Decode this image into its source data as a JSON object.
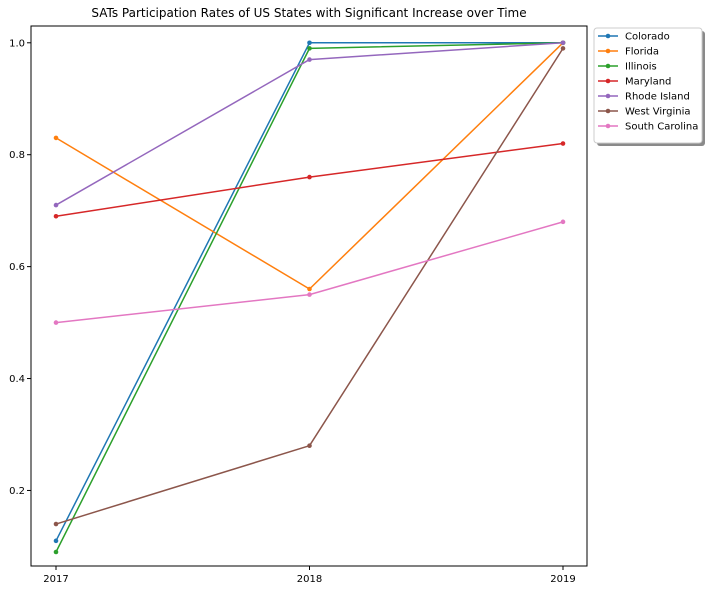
{
  "colors": {
    "background": "#ffffff",
    "axis": "#000000",
    "series": [
      "#1f77b4",
      "#ff7f0e",
      "#2ca02c",
      "#d62728",
      "#9467bd",
      "#8c564b",
      "#e377c2"
    ]
  },
  "chart_data": {
    "type": "line",
    "title": "SATs Participation Rates of US States with Significant Increase over Time",
    "xlabel": "",
    "ylabel": "",
    "categories": [
      "2017",
      "2018",
      "2019"
    ],
    "y_ticks": [
      "0.2",
      "0.4",
      "0.6",
      "0.8",
      "1.0"
    ],
    "ylim": [
      0.065,
      1.03
    ],
    "grid": false,
    "legend_position": "outside-top-right",
    "marker": "dot",
    "series": [
      {
        "name": "Colorado",
        "values": [
          0.11,
          1.0,
          1.0
        ]
      },
      {
        "name": "Florida",
        "values": [
          0.83,
          0.56,
          1.0
        ]
      },
      {
        "name": "Illinois",
        "values": [
          0.09,
          0.99,
          1.0
        ]
      },
      {
        "name": "Maryland",
        "values": [
          0.69,
          0.76,
          0.82
        ]
      },
      {
        "name": "Rhode Island",
        "values": [
          0.71,
          0.97,
          1.0
        ]
      },
      {
        "name": "West Virginia",
        "values": [
          0.14,
          0.28,
          0.99
        ]
      },
      {
        "name": "South Carolina",
        "values": [
          0.5,
          0.55,
          0.68
        ]
      }
    ]
  }
}
